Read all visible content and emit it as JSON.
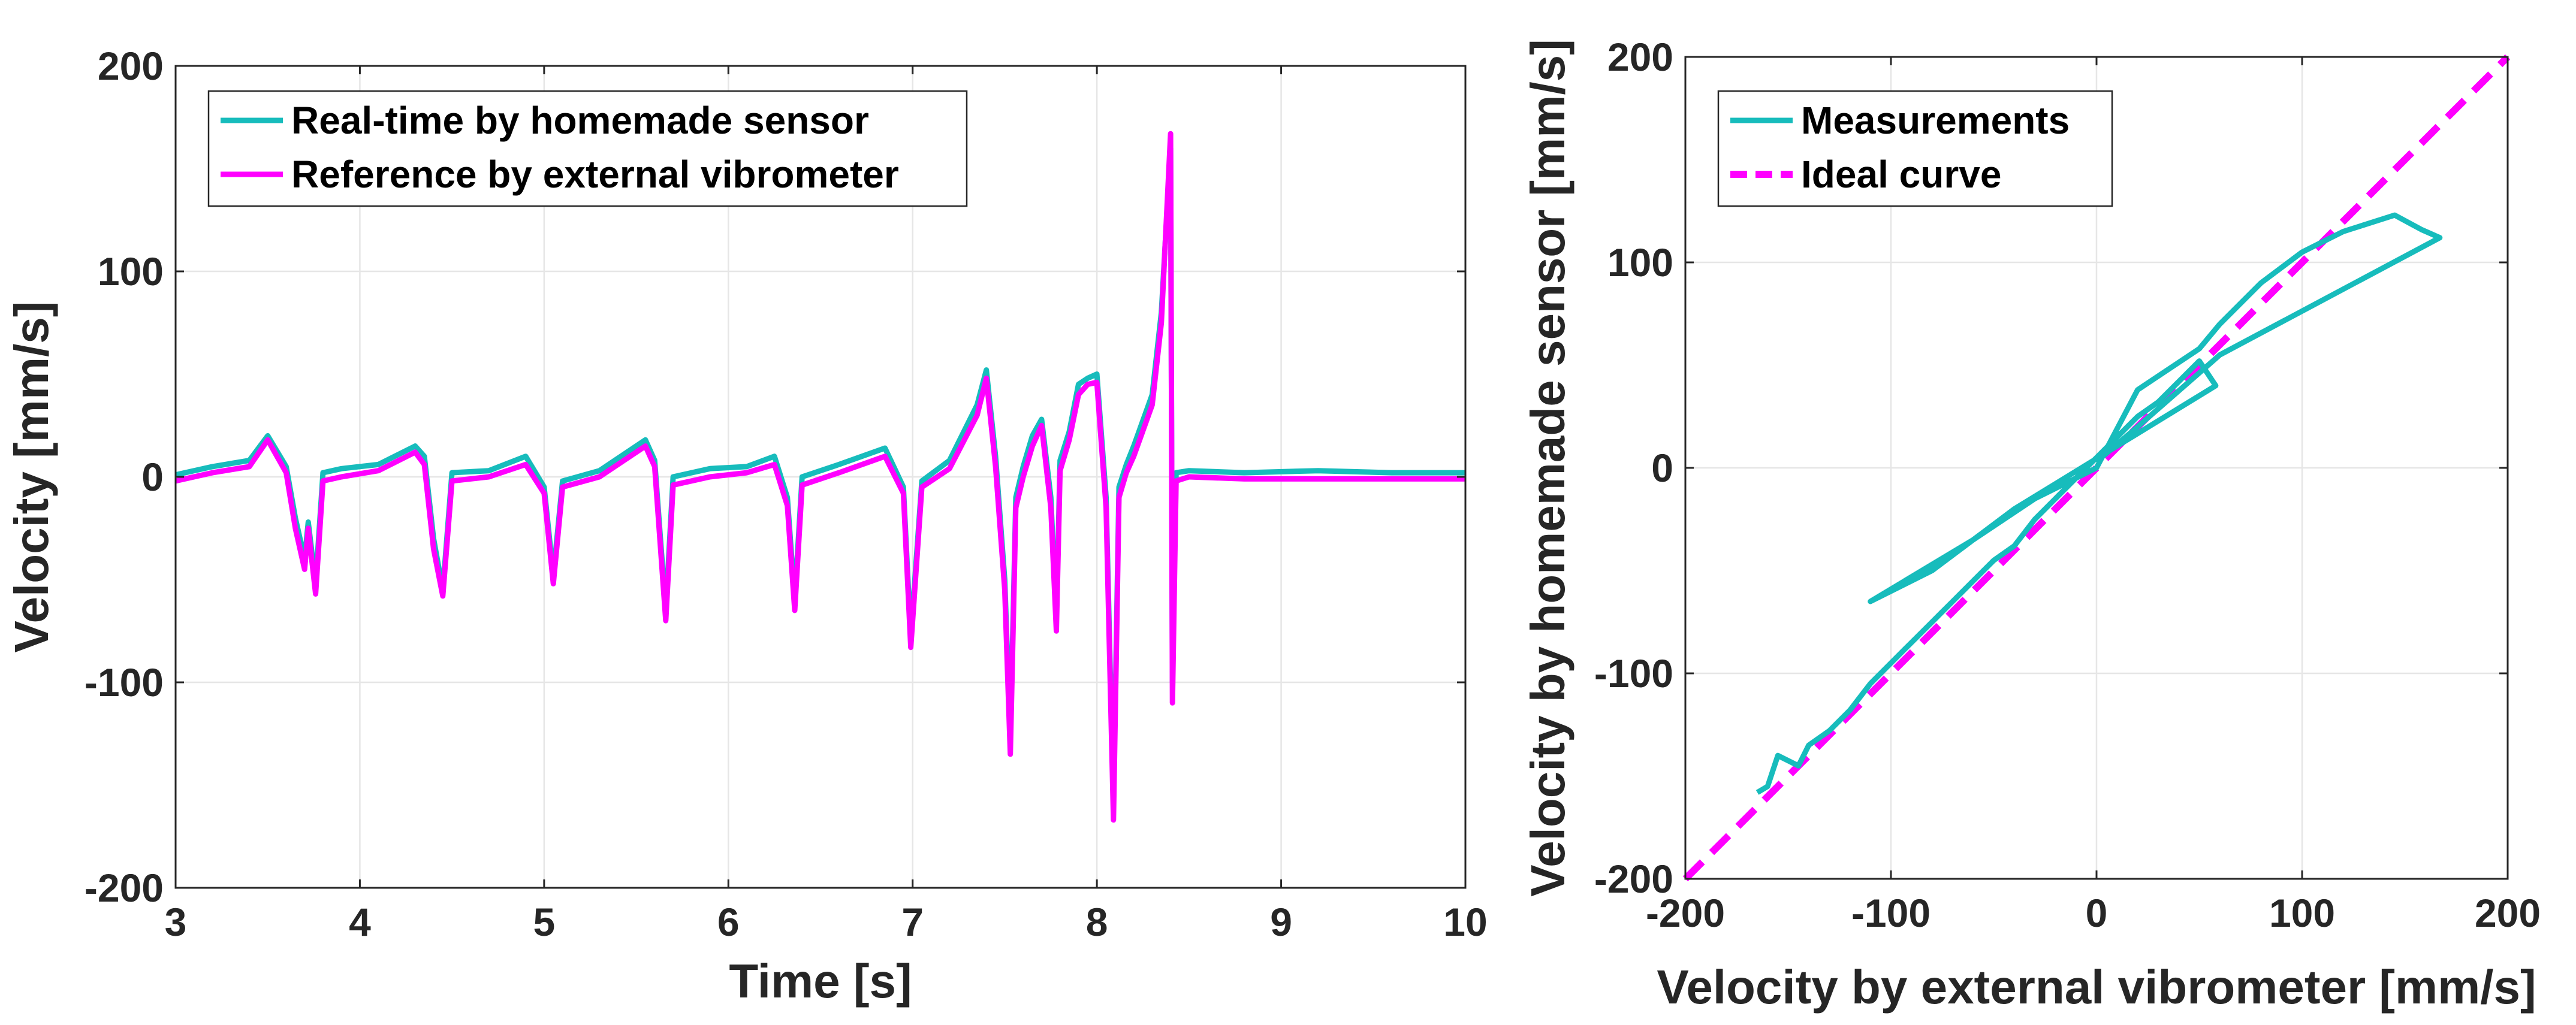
{
  "colors": {
    "measured": "#17bcbc",
    "reference": "#ff00ff",
    "axis": "#262626",
    "grid": "#e6e6e6"
  },
  "chart_data": [
    {
      "type": "line",
      "xlabel": "Time [s]",
      "ylabel": "Velocity [mm/s]",
      "xlim": [
        3,
        10
      ],
      "ylim": [
        -200,
        200
      ],
      "xticks": [
        "3",
        "4",
        "5",
        "6",
        "7",
        "8",
        "9",
        "10"
      ],
      "yticks": [
        "200",
        "100",
        "0",
        "-100",
        "-200"
      ],
      "xtick_values": [
        3,
        4,
        5,
        6,
        7,
        8,
        9,
        10
      ],
      "ytick_values": [
        200,
        100,
        0,
        -100,
        -200
      ],
      "grid": true,
      "legend_position": "top-left",
      "series": [
        {
          "name": "Real-time by homemade sensor",
          "color": "#17bcbc",
          "style": "solid",
          "x": [
            3.0,
            3.2,
            3.4,
            3.5,
            3.6,
            3.65,
            3.7,
            3.72,
            3.76,
            3.8,
            3.9,
            4.1,
            4.3,
            4.35,
            4.4,
            4.45,
            4.5,
            4.7,
            4.9,
            5.0,
            5.05,
            5.1,
            5.3,
            5.55,
            5.6,
            5.66,
            5.7,
            5.9,
            6.1,
            6.25,
            6.32,
            6.36,
            6.4,
            6.6,
            6.85,
            6.95,
            6.99,
            7.05,
            7.2,
            7.35,
            7.4,
            7.45,
            7.5,
            7.53,
            7.56,
            7.6,
            7.65,
            7.7,
            7.75,
            7.78,
            7.8,
            7.85,
            7.9,
            7.95,
            8.0,
            8.05,
            8.09,
            8.12,
            8.16,
            8.2,
            8.3,
            8.35,
            8.4,
            8.41,
            8.43,
            8.5,
            8.8,
            9.2,
            9.6,
            10.0
          ],
          "y": [
            1,
            5,
            8,
            20,
            5,
            -20,
            -40,
            -22,
            -52,
            2,
            4,
            6,
            15,
            10,
            -30,
            -55,
            2,
            3,
            10,
            -5,
            -48,
            -2,
            3,
            18,
            8,
            -65,
            0,
            4,
            5,
            10,
            -10,
            -60,
            0,
            6,
            14,
            -5,
            -78,
            -2,
            8,
            35,
            52,
            10,
            -50,
            -128,
            -10,
            5,
            20,
            28,
            -10,
            -70,
            8,
            22,
            45,
            48,
            50,
            -10,
            -160,
            -5,
            6,
            15,
            40,
            80,
            160,
            -100,
            2,
            3,
            2,
            3,
            2,
            2
          ]
        },
        {
          "name": "Reference by external vibrometer",
          "color": "#ff00ff",
          "style": "solid",
          "x": [
            3.0,
            3.2,
            3.4,
            3.5,
            3.6,
            3.65,
            3.7,
            3.72,
            3.76,
            3.8,
            3.9,
            4.1,
            4.3,
            4.35,
            4.4,
            4.45,
            4.5,
            4.7,
            4.9,
            5.0,
            5.05,
            5.1,
            5.3,
            5.55,
            5.6,
            5.66,
            5.7,
            5.9,
            6.1,
            6.25,
            6.32,
            6.36,
            6.4,
            6.6,
            6.85,
            6.95,
            6.99,
            7.05,
            7.2,
            7.35,
            7.4,
            7.45,
            7.5,
            7.53,
            7.56,
            7.6,
            7.65,
            7.7,
            7.75,
            7.78,
            7.8,
            7.85,
            7.9,
            7.95,
            8.0,
            8.05,
            8.09,
            8.12,
            8.16,
            8.2,
            8.3,
            8.35,
            8.4,
            8.41,
            8.43,
            8.5,
            8.8,
            9.2,
            9.6,
            10.0
          ],
          "y": [
            -2,
            2,
            5,
            18,
            2,
            -25,
            -45,
            -25,
            -57,
            -2,
            0,
            3,
            12,
            6,
            -35,
            -58,
            -2,
            0,
            6,
            -8,
            -52,
            -5,
            0,
            15,
            5,
            -70,
            -4,
            0,
            2,
            6,
            -14,
            -65,
            -4,
            2,
            10,
            -8,
            -83,
            -5,
            4,
            30,
            48,
            5,
            -55,
            -135,
            -15,
            0,
            15,
            25,
            -15,
            -75,
            3,
            18,
            40,
            45,
            46,
            -15,
            -167,
            -10,
            2,
            10,
            35,
            75,
            167,
            -110,
            -2,
            0,
            -1,
            -1,
            -1,
            -1
          ]
        }
      ]
    },
    {
      "type": "scatter",
      "xlabel": "Velocity by external vibrometer [mm/s]",
      "ylabel": "Velocity by homemade sensor [mm/s]",
      "xlim": [
        -200,
        200
      ],
      "ylim": [
        -200,
        200
      ],
      "xticks": [
        "-200",
        "-100",
        "0",
        "100",
        "200"
      ],
      "yticks": [
        "200",
        "100",
        "0",
        "-100",
        "-200"
      ],
      "xtick_values": [
        -200,
        -100,
        0,
        100,
        200
      ],
      "ytick_values": [
        200,
        100,
        0,
        -100,
        -200
      ],
      "grid": true,
      "legend_position": "top-left",
      "series": [
        {
          "name": "Measurements",
          "color": "#17bcbc",
          "style": "solid",
          "x": [
            -165,
            -160,
            -155,
            -145,
            -140,
            -130,
            -120,
            -110,
            -100,
            -90,
            -80,
            -75,
            -70,
            -60,
            -50,
            -40,
            -30,
            -20,
            -10,
            0,
            10,
            20,
            30,
            40,
            50,
            58,
            -40,
            -80,
            -110,
            -60,
            -30,
            0,
            20,
            50,
            60,
            80,
            100,
            120,
            145,
            158,
            167,
            60,
            20,
            0
          ],
          "y": [
            -158,
            -155,
            -140,
            -145,
            -135,
            -128,
            -118,
            -105,
            -95,
            -85,
            -75,
            -70,
            -65,
            -55,
            -45,
            -38,
            -25,
            -15,
            -5,
            5,
            15,
            25,
            32,
            42,
            52,
            40,
            -20,
            -50,
            -65,
            -35,
            -15,
            0,
            38,
            58,
            70,
            90,
            105,
            115,
            123,
            116,
            112,
            55,
            20,
            3
          ]
        },
        {
          "name": "Ideal curve",
          "color": "#ff00ff",
          "style": "dashed",
          "x": [
            -200,
            200
          ],
          "y": [
            -200,
            200
          ]
        }
      ]
    }
  ]
}
